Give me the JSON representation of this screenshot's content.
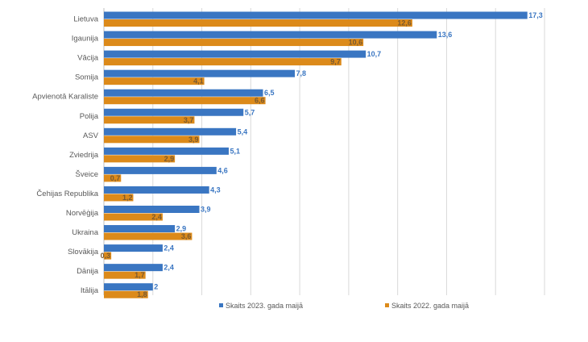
{
  "chart_data": {
    "type": "bar",
    "orientation": "horizontal",
    "categories": [
      "Lietuva",
      "Igaunija",
      "Vācija",
      "Somija",
      "Apvienotā Karaliste",
      "Polija",
      "ASV",
      "Zviedrija",
      "Šveice",
      "Čehijas Republika",
      "Norvēģija",
      "Ukraina",
      "Slovākija",
      "Dānija",
      "Itālija"
    ],
    "value_labels_2023": [
      "17,3",
      "13,6",
      "10,7",
      "7,8",
      "6,5",
      "5,7",
      "5,4",
      "5,1",
      "4,6",
      "4,3",
      "3,9",
      "2,9",
      "2,4",
      "2,4",
      "2"
    ],
    "value_labels_2022": [
      "12,6",
      "10,6",
      "9,7",
      "4,1",
      "6,6",
      "3,7",
      "3,9",
      "2,9",
      "0,7",
      "1,2",
      "2,4",
      "3,6",
      "0,3",
      "1,7",
      "1,8"
    ],
    "series": [
      {
        "name": "Skaits 2023. gada maijā",
        "color": "#3a76c2",
        "values": [
          17.3,
          13.6,
          10.7,
          7.8,
          6.5,
          5.7,
          5.4,
          5.1,
          4.6,
          4.3,
          3.9,
          2.9,
          2.4,
          2.4,
          2.0
        ]
      },
      {
        "name": "Skaits 2022. gada maijā",
        "color": "#dc8a1a",
        "values": [
          12.6,
          10.6,
          9.7,
          4.1,
          6.6,
          3.7,
          3.9,
          2.9,
          0.7,
          1.2,
          2.4,
          3.6,
          0.3,
          1.7,
          1.8
        ]
      }
    ],
    "xlim": [
      0,
      18
    ],
    "grid": true,
    "legend_position": "bottom",
    "title": "",
    "xlabel": "",
    "ylabel": "",
    "value_label_colors": {
      "series_1": "#3a76c2",
      "series_2": "#7a5a30"
    },
    "grid_color": "#d9d9d9"
  }
}
